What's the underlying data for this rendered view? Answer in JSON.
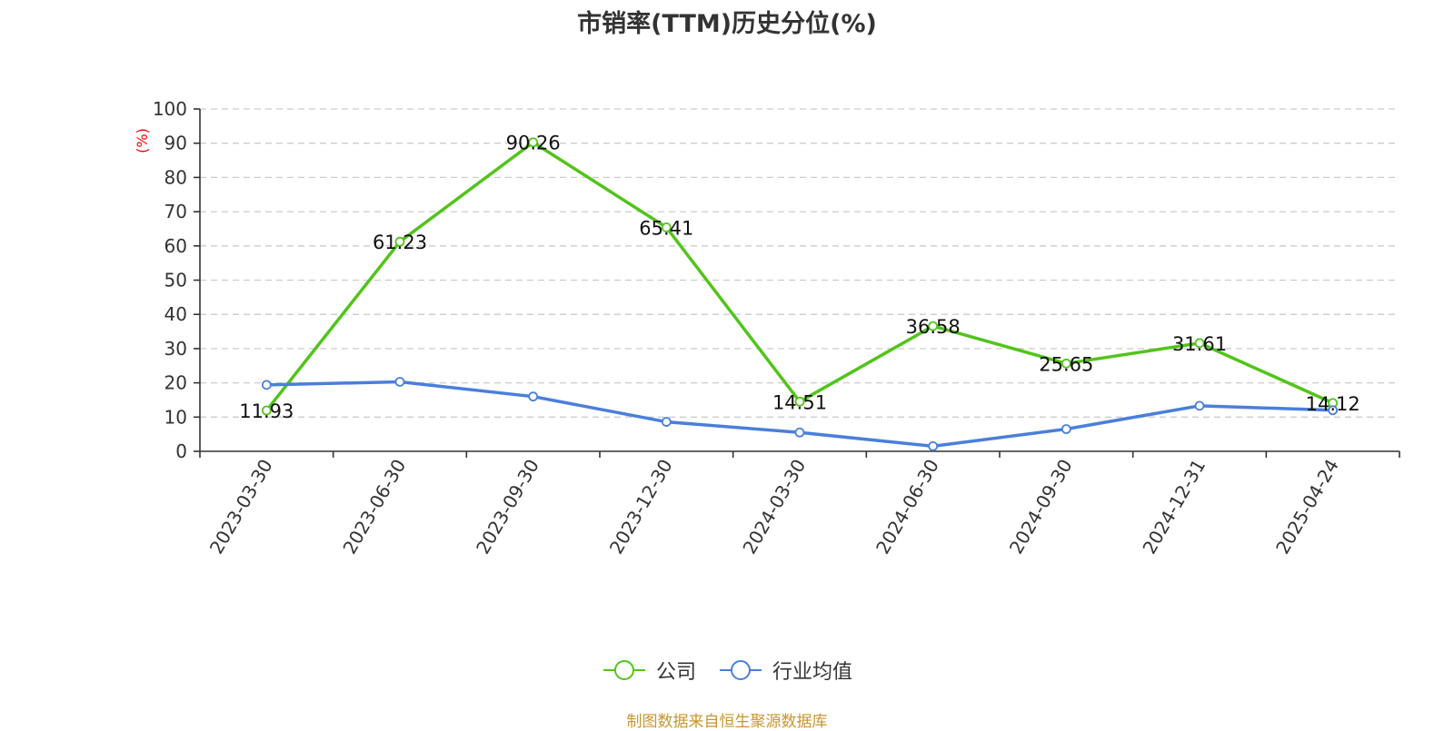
{
  "chart_data": {
    "type": "line",
    "title": "市销率(TTM)历史分位(%)",
    "ylabel": "(%)",
    "ylim": [
      0,
      100
    ],
    "yticks": [
      0,
      10,
      20,
      30,
      40,
      50,
      60,
      70,
      80,
      90,
      100
    ],
    "categories": [
      "2023-03-30",
      "2023-06-30",
      "2023-09-30",
      "2023-12-30",
      "2024-03-30",
      "2024-06-30",
      "2024-09-30",
      "2024-12-31",
      "2025-04-24"
    ],
    "series": [
      {
        "name": "公司",
        "color": "#52c41a",
        "values": [
          11.93,
          61.23,
          90.26,
          65.41,
          14.51,
          36.58,
          25.65,
          31.61,
          14.12
        ],
        "labels": [
          "11.93",
          "61.23",
          "90.26",
          "65.41",
          "14.51",
          "36.58",
          "25.65",
          "31.61",
          "14.12"
        ]
      },
      {
        "name": "行业均值",
        "color": "#4a7fdb",
        "values": [
          19.4,
          20.3,
          16.0,
          8.6,
          5.5,
          1.5,
          6.5,
          13.3,
          12.0
        ]
      }
    ],
    "grid": true,
    "legend_position": "bottom-center"
  },
  "colors": {
    "ylabel": "#ff0000",
    "source": "#c8962e"
  },
  "source_text": "制图数据来自恒生聚源数据库"
}
